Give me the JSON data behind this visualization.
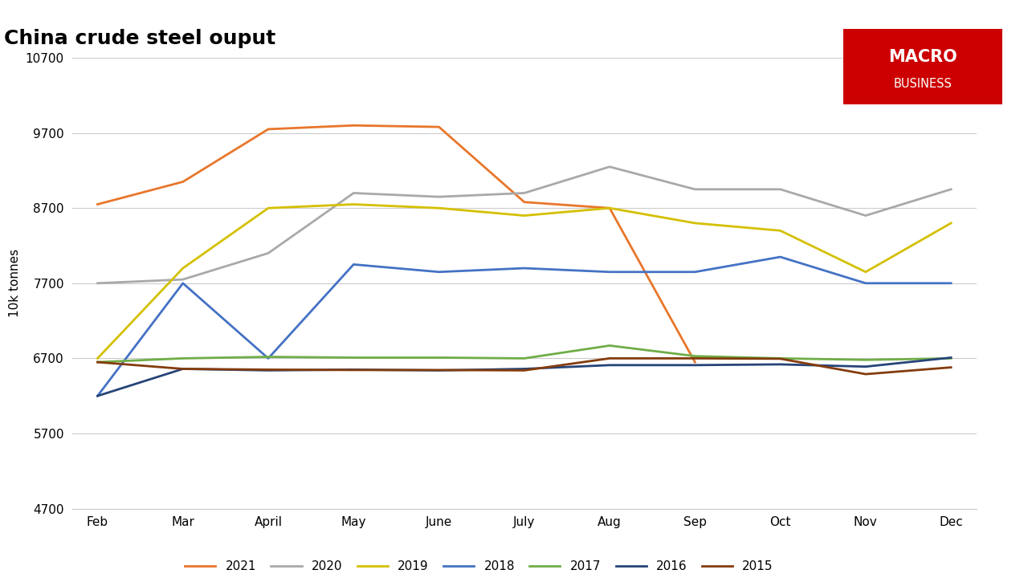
{
  "title": "China crude steel ouput",
  "ylabel": "10k tonnes",
  "months": [
    "Feb",
    "Mar",
    "April",
    "May",
    "June",
    "July",
    "Aug",
    "Sep",
    "Oct",
    "Nov",
    "Dec"
  ],
  "series": {
    "2021": {
      "color": "#E8762B",
      "values": [
        8750,
        9050,
        9750,
        9800,
        9780,
        8780,
        8700,
        6650,
        null,
        null,
        null
      ]
    },
    "2020": {
      "color": "#A9A9A9",
      "values": [
        7700,
        7750,
        8100,
        8900,
        8850,
        8900,
        9250,
        8950,
        8950,
        8600,
        8950
      ]
    },
    "2019": {
      "color": "#D4C000",
      "values": [
        6700,
        7900,
        8700,
        8750,
        8700,
        8600,
        8700,
        8500,
        8400,
        7850,
        8500
      ]
    },
    "2018": {
      "color": "#4472C4",
      "values": [
        6200,
        7700,
        6700,
        7950,
        7850,
        7900,
        7850,
        7850,
        8050,
        7700,
        7700
      ]
    },
    "2017": {
      "color": "#70AD47",
      "values": [
        6650,
        6700,
        6720,
        6710,
        6710,
        6700,
        6870,
        6730,
        6700,
        6680,
        6700
      ]
    },
    "2016": {
      "color": "#264478",
      "values": [
        6200,
        6560,
        6540,
        6550,
        6540,
        6560,
        6610,
        6610,
        6620,
        6590,
        6710
      ]
    },
    "2015": {
      "color": "#843C0C",
      "values": [
        6650,
        6560,
        6550,
        6545,
        6545,
        6540,
        6700,
        6700,
        6695,
        6490,
        6580
      ]
    }
  },
  "ylim": [
    4700,
    10700
  ],
  "yticks": [
    4700,
    5700,
    6700,
    7700,
    8700,
    9700,
    10700
  ],
  "background_color": "#FFFFFF",
  "plot_bg_color": "#FFFFFF",
  "grid_color": "#CCCCCC",
  "title_fontsize": 18,
  "legend_order": [
    "2021",
    "2020",
    "2019",
    "2018",
    "2017",
    "2016",
    "2015"
  ],
  "logo_text1": "MACRO",
  "logo_text2": "BUSINESS",
  "logo_color": "#CC0000"
}
